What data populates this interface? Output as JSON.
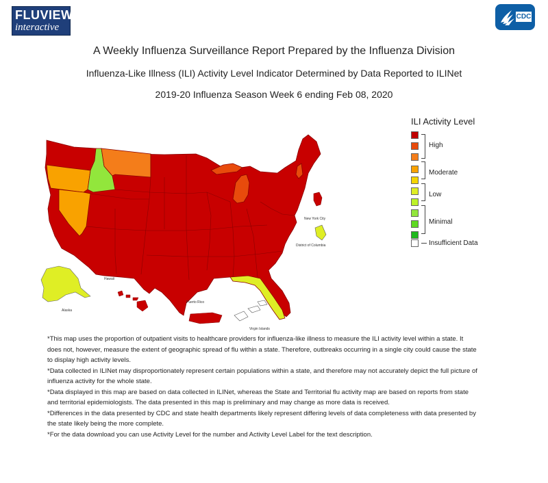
{
  "header": {
    "logo_left_line1": "FLUVIEW",
    "logo_left_line2": "interactive",
    "logo_right": "CDC"
  },
  "titles": {
    "main": "A Weekly Influenza Surveillance Report Prepared by the Influenza Division",
    "sub": "Influenza-Like Illness (ILI) Activity Level Indicator Determined by Data Reported to ILINet",
    "season": "2019-20 Influenza Season Week 6 ending Feb 08, 2020"
  },
  "legend": {
    "title": "ILI Activity Level",
    "groups": [
      {
        "label": "High"
      },
      {
        "label": "Moderate"
      },
      {
        "label": "Low"
      },
      {
        "label": "Minimal"
      }
    ],
    "insufficient_label": "Insufficient Data",
    "level_colors": [
      "#c00000",
      "#e84b0c",
      "#f47d1a",
      "#f9a200",
      "#f5d500",
      "#dfee25",
      "#bdf328",
      "#92e63c",
      "#5fd922",
      "#1fb81d"
    ],
    "insufficient_color": "#ffffff"
  },
  "map": {
    "labels": {
      "new_york_city": "New York City",
      "district_of_columbia": "District of Columbia",
      "hawaii": "Hawaii",
      "alaska": "Alaska",
      "puerto_rico": "Puerto Rico",
      "virgin_islands": "Virgin Islands"
    },
    "state_levels": {
      "main_default": "high-10",
      "oregon": "moderate-7",
      "idaho": "minimal-2",
      "montana": "high-8",
      "nevada": "moderate-7",
      "michigan": "high-9",
      "new_hampshire": "high-9",
      "florida": "low-4",
      "alaska": "low-4",
      "hawaii": "high-10",
      "puerto_rico": "high-10",
      "new_york_city": "high-10",
      "district_of_columbia": "low-4",
      "virgin_islands": "insufficient"
    }
  },
  "notes": [
    "*This map uses the proportion of outpatient visits to healthcare providers for influenza-like illness to measure the ILI activity level within a state. It does not, however, measure the extent of geographic spread of flu within a state. Therefore, outbreaks occurring in a single city could cause the state to display high activity levels.",
    "*Data collected in ILINet may disproportionately represent certain populations within a state, and therefore may not accurately depict the full picture of influenza activity for the whole state.",
    "*Data displayed in this map are based on data collected in ILINet, whereas the State and Territorial flu activity map are based on reports from state and territorial epidemiologists. The data presented in this map is preliminary and may change as more data is received.",
    "*Differences in the data presented by CDC and state health departments likely represent differing levels of data completeness with data presented by the state likely being the more complete.",
    "*For the data download you can use Activity Level for the number and Activity Level Label for the text description."
  ]
}
